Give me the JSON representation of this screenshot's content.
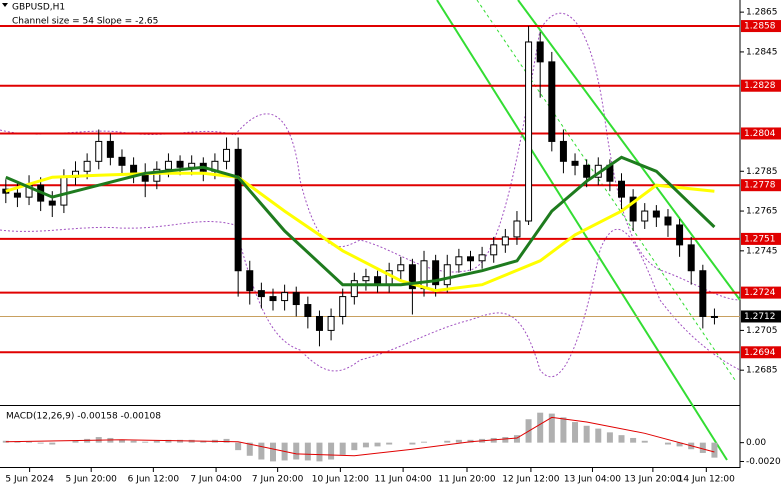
{
  "chart_data": [
    {
      "type": "candlestick",
      "title": "GBPUSD,H1",
      "subtitle": "Channel size = 54 Slope = -2.65",
      "open": [
        1.2776,
        1.2774,
        1.2772,
        1.2778,
        1.277,
        1.2768,
        1.2782,
        1.2785,
        1.279,
        1.28,
        1.2792,
        1.2788,
        1.2784,
        1.278,
        1.2786,
        1.279,
        1.2787,
        1.2789,
        1.2785,
        1.279,
        1.2796,
        1.2735,
        1.2725,
        1.2722,
        1.272,
        1.2724,
        1.2718,
        1.2712,
        1.2705,
        1.2712,
        1.2722,
        1.273,
        1.2732,
        1.2728,
        1.2735,
        1.2738,
        1.2726,
        1.274,
        1.2728,
        1.2738,
        1.2742,
        1.274,
        1.2743,
        1.2748,
        1.2752,
        1.276,
        1.285,
        1.284,
        1.28,
        1.279,
        1.2788,
        1.2782,
        1.2788,
        1.278,
        1.2772,
        1.276,
        1.2765,
        1.2762,
        1.2758,
        1.2748,
        1.2735,
        1.2712
      ],
      "high": [
        1.2781,
        1.2779,
        1.2783,
        1.2782,
        1.2775,
        1.2786,
        1.279,
        1.2794,
        1.2806,
        1.2804,
        1.2796,
        1.2792,
        1.2789,
        1.279,
        1.2794,
        1.2793,
        1.2793,
        1.2792,
        1.2794,
        1.2802,
        1.2802,
        1.274,
        1.2729,
        1.2726,
        1.2728,
        1.2727,
        1.2722,
        1.2715,
        1.2716,
        1.2726,
        1.2734,
        1.2736,
        1.2735,
        1.2739,
        1.2742,
        1.2741,
        1.2745,
        1.2743,
        1.2743,
        1.2746,
        1.2745,
        1.2747,
        1.2752,
        1.2756,
        1.2765,
        1.2858,
        1.2855,
        1.2845,
        1.2806,
        1.2794,
        1.2791,
        1.2792,
        1.2791,
        1.2784,
        1.2776,
        1.2769,
        1.2768,
        1.2766,
        1.2761,
        1.2752,
        1.2738,
        1.2716
      ],
      "low": [
        1.2769,
        1.2767,
        1.2768,
        1.2765,
        1.2762,
        1.2764,
        1.2778,
        1.2781,
        1.2786,
        1.2788,
        1.2783,
        1.2779,
        1.2772,
        1.2776,
        1.2782,
        1.2783,
        1.2783,
        1.278,
        1.2781,
        1.2786,
        1.2722,
        1.2718,
        1.2716,
        1.2715,
        1.2715,
        1.2712,
        1.2706,
        1.2697,
        1.27,
        1.2708,
        1.2718,
        1.2725,
        1.2724,
        1.2724,
        1.273,
        1.2713,
        1.2722,
        1.2722,
        1.2724,
        1.2734,
        1.2735,
        1.2736,
        1.2739,
        1.2744,
        1.2748,
        1.2758,
        1.2822,
        1.2795,
        1.2784,
        1.2783,
        1.2777,
        1.2778,
        1.2775,
        1.2766,
        1.2755,
        1.2756,
        1.2757,
        1.2752,
        1.2742,
        1.2728,
        1.2706,
        1.2708
      ],
      "close": [
        1.2774,
        1.2772,
        1.2778,
        1.277,
        1.2768,
        1.2782,
        1.2785,
        1.279,
        1.28,
        1.2792,
        1.2788,
        1.2784,
        1.278,
        1.2786,
        1.279,
        1.2787,
        1.2789,
        1.2785,
        1.279,
        1.2796,
        1.2735,
        1.2725,
        1.2722,
        1.272,
        1.2724,
        1.2718,
        1.2712,
        1.2705,
        1.2712,
        1.2722,
        1.273,
        1.2732,
        1.2728,
        1.2735,
        1.2738,
        1.2726,
        1.274,
        1.2728,
        1.2738,
        1.2742,
        1.274,
        1.2743,
        1.2748,
        1.2752,
        1.276,
        1.285,
        1.284,
        1.28,
        1.279,
        1.2788,
        1.2782,
        1.2788,
        1.278,
        1.2772,
        1.276,
        1.2765,
        1.2762,
        1.2758,
        1.2748,
        1.2735,
        1.2712,
        1.2712
      ],
      "series": [
        {
          "color": "#ffff00",
          "x": [
            0,
            4,
            8,
            13,
            17,
            20,
            24,
            29,
            34,
            37,
            41,
            46,
            49,
            53,
            56,
            61
          ],
          "values": [
            1.2775,
            1.2782,
            1.2783,
            1.2784,
            1.2784,
            1.2782,
            1.2765,
            1.2745,
            1.273,
            1.2725,
            1.2728,
            1.274,
            1.2753,
            1.2765,
            1.2778,
            1.2775
          ]
        },
        {
          "color": "#1e7b1e",
          "x": [
            0,
            4,
            8,
            12,
            17,
            20,
            24,
            29,
            34,
            37,
            41,
            44,
            47,
            50,
            53,
            56,
            61
          ],
          "values": [
            1.2782,
            1.2772,
            1.2778,
            1.2784,
            1.2787,
            1.2782,
            1.2755,
            1.2728,
            1.2728,
            1.273,
            1.2735,
            1.274,
            1.2765,
            1.278,
            1.2792,
            1.2785,
            1.2757
          ]
        }
      ],
      "levels": [
        {
          "value": 1.2858,
          "label": "1.2858"
        },
        {
          "value": 1.2828,
          "label": "1.2828"
        },
        {
          "value": 1.2804,
          "label": "1.2804"
        },
        {
          "value": 1.2778,
          "label": "1.2778"
        },
        {
          "value": 1.2751,
          "label": "1.2751"
        },
        {
          "value": 1.2724,
          "label": "1.2724"
        },
        {
          "value": 1.2694,
          "label": "1.2694"
        }
      ],
      "level_color": "#e00000",
      "current_price": {
        "value": 1.2712,
        "label": "1.2712"
      },
      "ylim": [
        1.26675,
        1.28711
      ],
      "yticks": [
        {
          "value": 1.2865,
          "label": "1.2865"
        },
        {
          "value": 1.2845,
          "label": "1.2845"
        },
        {
          "value": 1.2785,
          "label": "1.2785"
        },
        {
          "value": 1.2765,
          "label": "1.2765"
        },
        {
          "value": 1.2745,
          "label": "1.2745"
        },
        {
          "value": 1.2705,
          "label": "1.2705"
        },
        {
          "value": 1.2685,
          "label": "1.2685"
        }
      ],
      "xlim": [
        -0.5,
        63.2
      ],
      "xticks": [
        {
          "value": 2.05,
          "label": "5 Jun 2024"
        },
        {
          "value": 7.35,
          "label": "5 Jun 20:00"
        },
        {
          "value": 12.7,
          "label": "6 Jun 12:00"
        },
        {
          "value": 18.1,
          "label": "7 Jun 04:00"
        },
        {
          "value": 23.4,
          "label": "7 Jun 20:00"
        },
        {
          "value": 28.8,
          "label": "10 Jun 12:00"
        },
        {
          "value": 34.2,
          "label": "11 Jun 04:00"
        },
        {
          "value": 39.7,
          "label": "11 Jun 20:00"
        },
        {
          "value": 45.2,
          "label": "12 Jun 12:00"
        },
        {
          "value": 50.5,
          "label": "13 Jun 04:00"
        },
        {
          "value": 55.7,
          "label": "13 Jun 20:00"
        },
        {
          "value": 60.3,
          "label": "14 Jun 12:00"
        }
      ]
    },
    {
      "type": "macd",
      "title": "MACD(12,26,9) -0.00158 -0.00108",
      "histogram": {
        "color": "#b0b0b0",
        "values": [
          0.0002,
          0.0001,
          0.0001,
          -0.0001,
          -0.0002,
          0.0,
          0.0002,
          0.0004,
          0.0006,
          0.0005,
          0.0003,
          0.0002,
          0.0001,
          0.0002,
          0.0003,
          0.0003,
          0.0003,
          0.0002,
          0.0003,
          0.0004,
          -0.0008,
          -0.0014,
          -0.0018,
          -0.002,
          -0.0019,
          -0.0018,
          -0.0019,
          -0.002,
          -0.0018,
          -0.0013,
          -0.0008,
          -0.0005,
          -0.0004,
          -0.0002,
          0.0,
          -0.0002,
          0.0001,
          0.0,
          0.0002,
          0.0003,
          0.0003,
          0.0004,
          0.0005,
          0.0006,
          0.0008,
          0.0025,
          0.0032,
          0.0031,
          0.0027,
          0.0022,
          0.0018,
          0.0015,
          0.0011,
          0.0008,
          0.0005,
          0.0002,
          0.0,
          -0.0002,
          -0.0004,
          -0.0007,
          -0.0011,
          -0.0016
        ]
      },
      "signal": {
        "color": "#e00000",
        "x": [
          0,
          10,
          20,
          25,
          30,
          35,
          40,
          44,
          47,
          50,
          55,
          61
        ],
        "values": [
          0.0001,
          0.0003,
          0.0001,
          -0.0012,
          -0.0014,
          -0.0007,
          0.0001,
          0.0005,
          0.0027,
          0.0022,
          0.001,
          -0.001
        ]
      },
      "ylim": [
        -0.0026,
        0.0037
      ],
      "yticks": [
        {
          "value": 0,
          "label": "0.00"
        },
        {
          "value": -0.00201,
          "label": "-0.00201"
        }
      ]
    }
  ]
}
